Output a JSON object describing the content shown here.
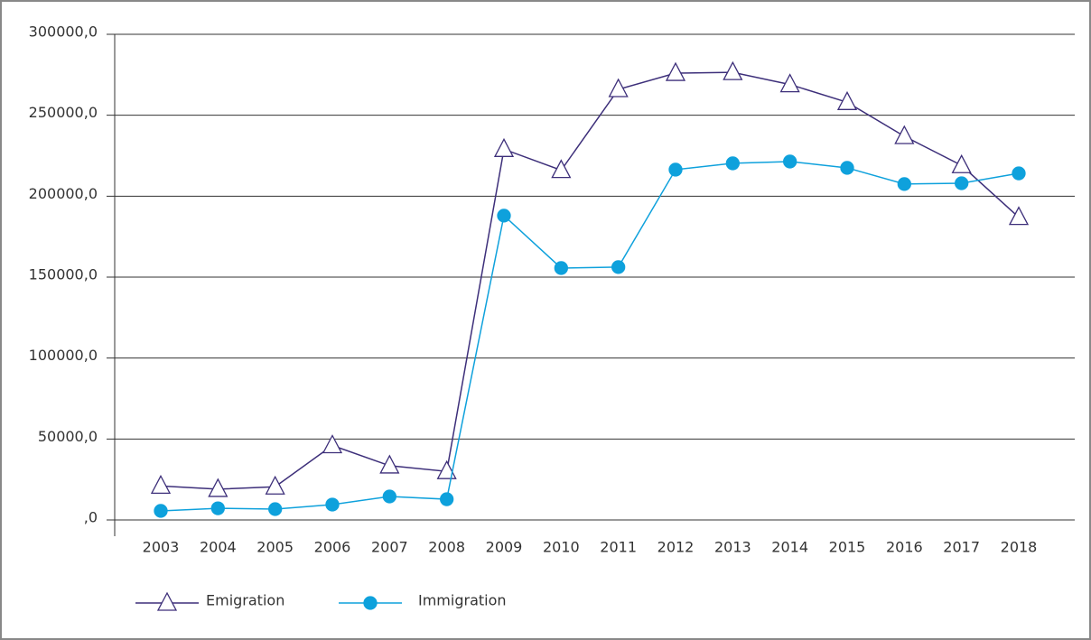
{
  "chart_data": {
    "type": "line",
    "categories": [
      "2003",
      "2004",
      "2005",
      "2006",
      "2007",
      "2008",
      "2009",
      "2010",
      "2011",
      "2012",
      "2013",
      "2014",
      "2015",
      "2016",
      "2017",
      "2018"
    ],
    "series": [
      {
        "name": "Emigration",
        "color": "#3d2f7a",
        "marker": "triangle",
        "values": [
          21000,
          19000,
          20500,
          46000,
          33500,
          30000,
          229000,
          216000,
          266000,
          276000,
          276500,
          269000,
          258000,
          237000,
          219000,
          187000
        ]
      },
      {
        "name": "Immigration",
        "color": "#0ea1dc",
        "marker": "circle",
        "values": [
          5600,
          7200,
          6700,
          9500,
          14500,
          12800,
          188000,
          155600,
          156200,
          216400,
          220300,
          221400,
          217500,
          207500,
          208000,
          214100
        ]
      }
    ],
    "ylim": [
      0,
      300000
    ],
    "yticks": [
      {
        "value": 0,
        "label": ",0"
      },
      {
        "value": 50000,
        "label": "50000,0"
      },
      {
        "value": 100000,
        "label": "100000,0"
      },
      {
        "value": 150000,
        "label": "150000,0"
      },
      {
        "value": 200000,
        "label": "200000,0"
      },
      {
        "value": 250000,
        "label": "250000,0"
      },
      {
        "value": 300000,
        "label": "300000,0"
      }
    ],
    "grid": true,
    "legend": "bottom-left"
  }
}
